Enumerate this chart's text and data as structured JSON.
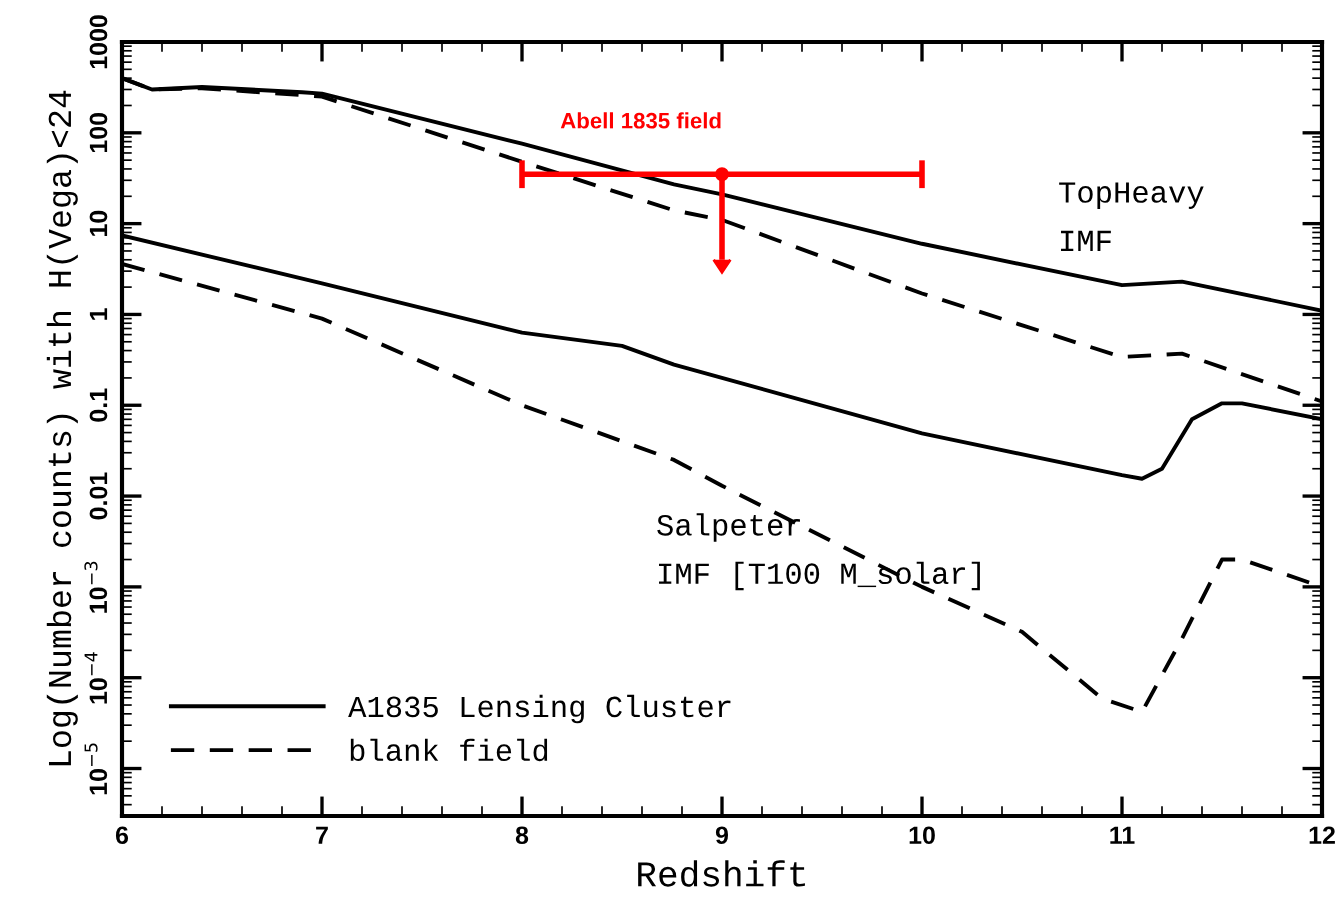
{
  "chart_data": {
    "type": "line",
    "xlabel": "Redshift",
    "ylabel": "Log(Number counts) with H(Vega)<24",
    "log": "y",
    "grid": false,
    "legend": "bottom left",
    "marker": "none",
    "xlim": [
      6,
      12
    ],
    "xticks": [
      6,
      7,
      8,
      9,
      10,
      11,
      12
    ],
    "ylim": [
      3e-06,
      1000
    ],
    "yticks": [
      1000,
      100,
      10,
      1,
      0.1,
      0.01,
      {
        "value": 0.001,
        "label": "10$^{−3}$"
      },
      {
        "value": 0.0001,
        "label": "10$^{−4}$"
      },
      {
        "value": 1e-05,
        "label": "10$^{−5}$"
      }
    ],
    "series": [
      {
        "name": "A1835 Lensing Cluster",
        "color": "#000000",
        "line_style": "solid",
        "x": [
          6,
          6.15,
          6.4,
          6.9,
          7,
          8,
          8.76,
          9,
          10,
          11,
          11.3,
          12
        ],
        "values": [
          400,
          300,
          320,
          280,
          270,
          76,
          27,
          21,
          6,
          2.1,
          2.3,
          1.1
        ]
      },
      {
        "name": "blank field",
        "color": "#000000",
        "line_style": "dashed",
        "x": [
          6,
          6.15,
          6.4,
          6.9,
          7,
          8,
          8.76,
          9,
          10,
          11,
          11.3,
          12
        ],
        "values": [
          400,
          300,
          310,
          260,
          250,
          48,
          14,
          11,
          1.7,
          0.34,
          0.37,
          0.11
        ]
      },
      {
        "color": "#000000",
        "line_style": "solid",
        "x": [
          6,
          7,
          8,
          8.5,
          8.76,
          10,
          11,
          11.1,
          11.2,
          11.35,
          11.5,
          11.6,
          12
        ],
        "values": [
          7.4,
          2.2,
          0.63,
          0.45,
          0.28,
          0.049,
          0.017,
          0.0155,
          0.02,
          0.07,
          0.105,
          0.105,
          0.07
        ]
      },
      {
        "color": "#000000",
        "line_style": "dashed",
        "x": [
          6,
          7,
          8,
          8.76,
          9,
          10,
          10.5,
          10.9,
          11.1,
          11.3,
          11.5,
          11.6,
          12
        ],
        "values": [
          3.6,
          0.9,
          0.1,
          0.025,
          0.013,
          0.001,
          0.00032,
          5.9e-05,
          4.2e-05,
          0.00027,
          0.002,
          0.002,
          0.001
        ]
      },
      {
        "type": "scatter",
        "name": "Abell 1835 field",
        "color": "#ff0000",
        "marker": "circle",
        "x": [
          9
        ],
        "values": [
          35
        ],
        "xerrors": [
          [
            8,
            10
          ]
        ],
        "errors": [
          [
            4,
            35
          ]
        ]
      }
    ],
    "annotations": [
      "TopHeavy\nIMF",
      "Salpeter\nIMF [T100 M_solar]"
    ]
  }
}
